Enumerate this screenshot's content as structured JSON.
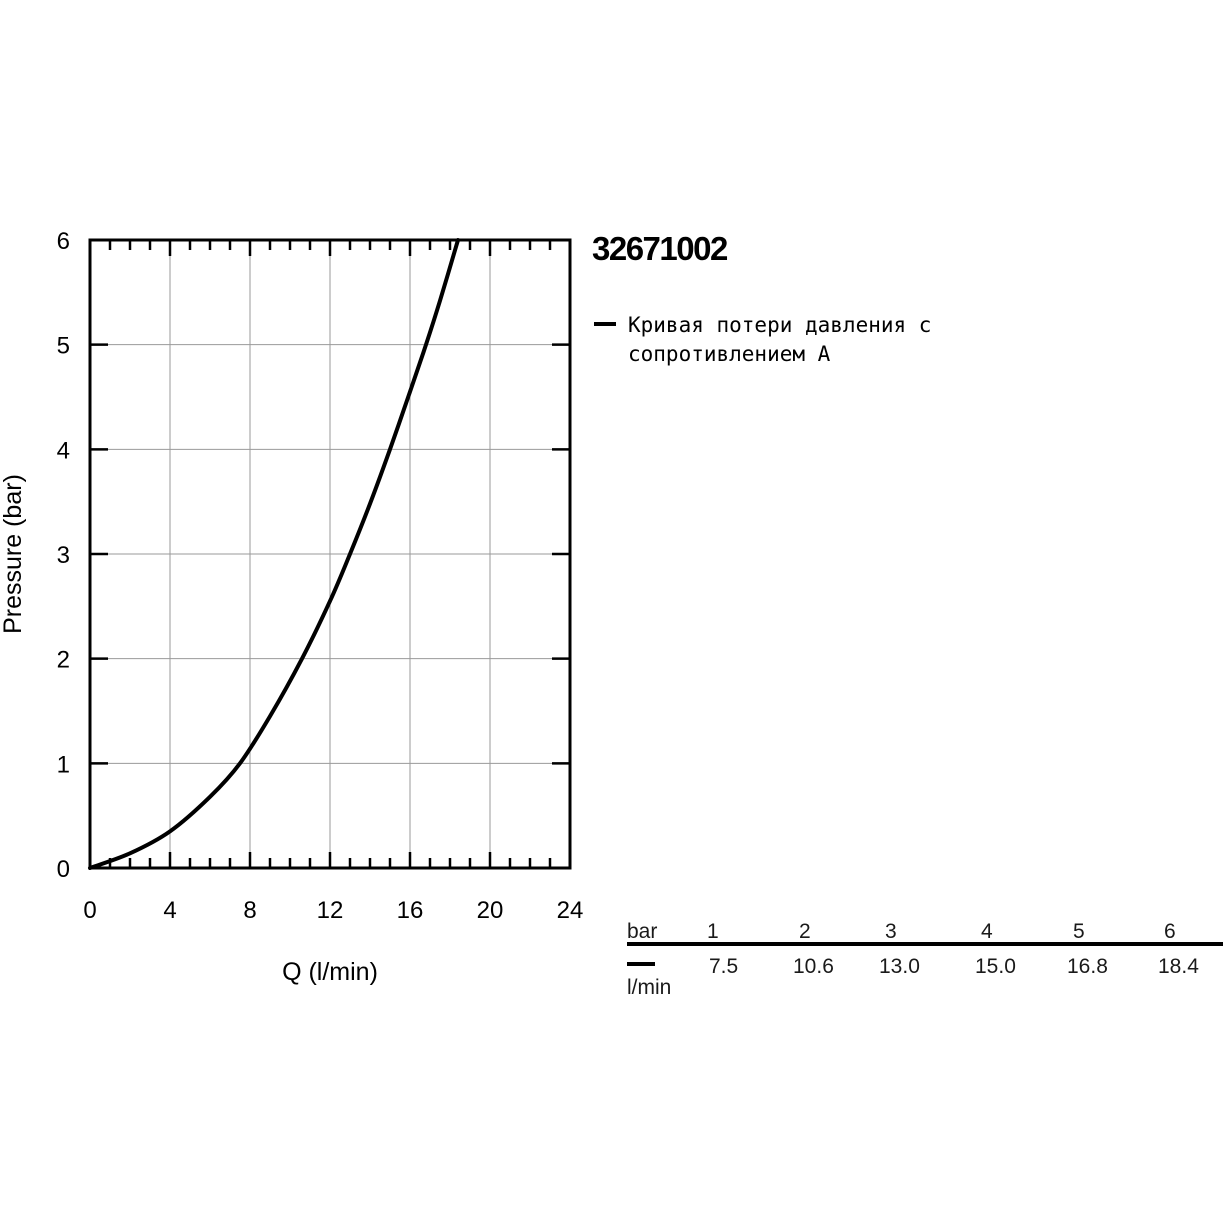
{
  "product_code": "32671002",
  "legend": {
    "label": "Кривая потери давления с\nсопротивлением A",
    "color": "#000000"
  },
  "table": {
    "header_label": "bar",
    "row_label": "l/min",
    "columns": [
      {
        "bar": "1",
        "flow": "7.5"
      },
      {
        "bar": "2",
        "flow": "10.6"
      },
      {
        "bar": "3",
        "flow": "13.0"
      },
      {
        "bar": "4",
        "flow": "15.0"
      },
      {
        "bar": "5",
        "flow": "16.8"
      },
      {
        "bar": "6",
        "flow": "18.4"
      }
    ]
  },
  "chart_data": {
    "type": "line",
    "xlabel": "Q (l/min)",
    "ylabel": "Pressure (bar)",
    "xlim": [
      0,
      24
    ],
    "ylim": [
      0,
      6
    ],
    "x_ticks": [
      "0",
      "4",
      "8",
      "12",
      "16",
      "20",
      "24"
    ],
    "y_ticks": [
      "0",
      "1",
      "2",
      "3",
      "4",
      "5",
      "6"
    ],
    "grid": true,
    "series": [
      {
        "color": "#000000",
        "x": [
          0,
          2,
          4,
          6,
          7.5,
          9,
          10.6,
          12,
          13.0,
          14,
          15.0,
          16,
          16.8,
          17.5,
          18.4
        ],
        "y": [
          0,
          0.14,
          0.35,
          0.68,
          1.0,
          1.45,
          2.0,
          2.55,
          3.0,
          3.48,
          4.0,
          4.55,
          5.0,
          5.42,
          6.0
        ]
      }
    ]
  }
}
